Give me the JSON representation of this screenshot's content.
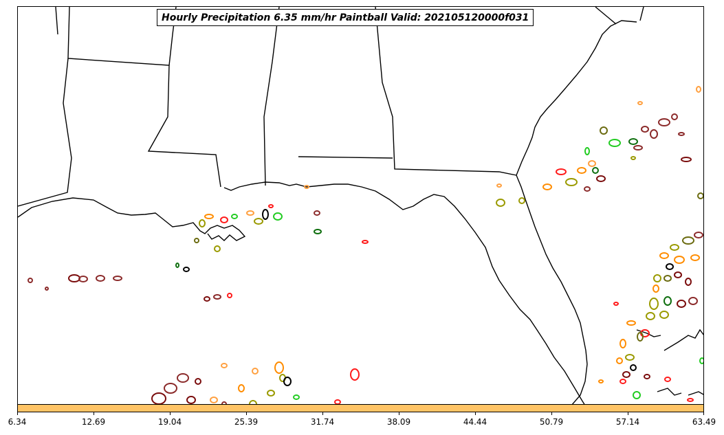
{
  "title": "Hourly Precipitation 6.35 mm/hr Paintball Valid: 202105120000f031",
  "colorbar": {
    "color": "#ffc466",
    "tick_labels": [
      "6.34",
      "12.69",
      "19.04",
      "25.39",
      "31.74",
      "38.09",
      "44.44",
      "50.79",
      "57.14",
      "63.49"
    ]
  },
  "colors": {
    "dark-red": "#7a0c0c",
    "brown-red": "#8b2a2a",
    "red": "#ff1a1a",
    "orange": "#ff8c00",
    "light-orange": "#ffa040",
    "olive": "#9a9a00",
    "dark-olive": "#6b6b10",
    "green": "#22cc22",
    "dark-green": "#0e6e0e",
    "black": "#000000"
  }
}
